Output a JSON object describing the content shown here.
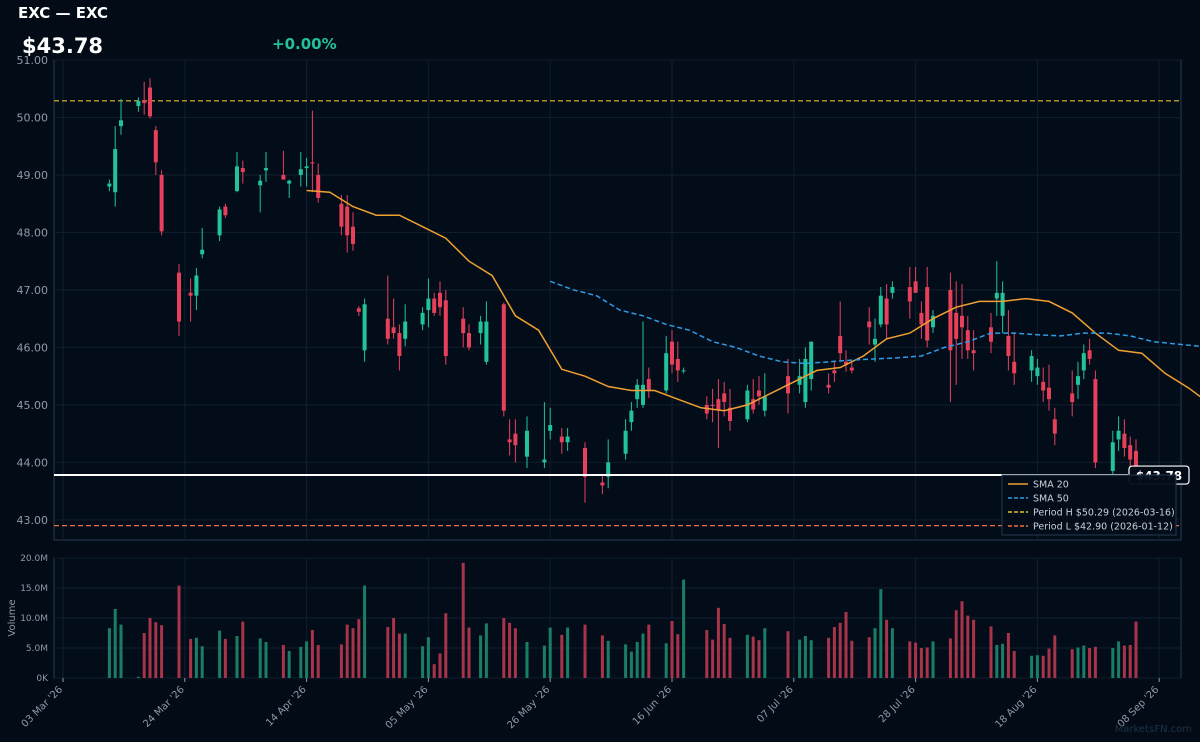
{
  "header": {
    "title": "EXC — EXC",
    "price": "$43.78",
    "change": "+0.00%"
  },
  "watermark": "MarketsFN.com",
  "colors": {
    "background": "#020b16",
    "up": "#22c39a",
    "down": "#e8405a",
    "sma20": "#f0a030",
    "sma50": "#2e9be6",
    "period_high": "#e8c030",
    "period_low": "#e8703a",
    "last_price_line": "#ffffff"
  },
  "chart_data": {
    "type": "candlestick",
    "ylabel": "",
    "volume_ylabel": "Volume",
    "ylim": [
      42.65,
      51.0
    ],
    "volume_ylim": [
      0,
      20000000
    ],
    "y_ticks": [
      "43.00",
      "44.00",
      "45.00",
      "46.00",
      "47.00",
      "48.00",
      "49.00",
      "50.00",
      "51.00"
    ],
    "volume_ticks": [
      "0K",
      "5.0M",
      "10.0M",
      "15.0M",
      "20.0M"
    ],
    "x_ticks": [
      "03 Mar '26",
      "24 Mar '26",
      "14 Apr '26",
      "05 May '26",
      "26 May '26",
      "16 Jun '26",
      "07 Jul '26",
      "28 Jul '26",
      "18 Aug '26",
      "08 Sep '26"
    ],
    "x_start": "2026-03-03",
    "candles": [
      [
        "2026-03-11",
        48.8,
        48.92,
        48.72,
        48.85,
        8.3
      ],
      [
        "2026-03-12",
        48.7,
        49.85,
        48.45,
        49.45,
        11.5
      ],
      [
        "2026-03-13",
        49.85,
        50.32,
        49.7,
        49.95,
        8.9
      ],
      [
        "2026-03-16",
        50.2,
        50.35,
        50.1,
        50.29,
        0.2
      ],
      [
        "2026-03-17",
        50.3,
        50.62,
        50.05,
        50.25,
        7.5
      ],
      [
        "2026-03-18",
        50.52,
        50.68,
        49.98,
        50.02,
        10.0
      ],
      [
        "2026-03-19",
        49.78,
        49.85,
        49.0,
        49.22,
        9.3
      ],
      [
        "2026-03-20",
        49.0,
        49.08,
        47.95,
        48.02,
        8.8
      ],
      [
        "2026-03-23",
        47.3,
        47.45,
        46.2,
        46.45,
        15.4
      ],
      [
        "2026-03-25",
        46.95,
        47.2,
        46.45,
        46.9,
        6.5
      ],
      [
        "2026-03-26",
        46.9,
        47.38,
        46.65,
        47.25,
        6.7
      ],
      [
        "2026-03-27",
        47.62,
        48.08,
        47.55,
        47.7,
        5.3
      ],
      [
        "2026-03-30",
        47.95,
        48.45,
        47.85,
        48.4,
        7.9
      ],
      [
        "2026-03-31",
        48.45,
        48.5,
        48.25,
        48.3,
        6.5
      ],
      [
        "2026-04-02",
        48.72,
        49.4,
        48.7,
        49.15,
        7.0
      ],
      [
        "2026-04-03",
        49.12,
        49.25,
        48.85,
        49.05,
        9.4
      ],
      [
        "2026-04-06",
        48.82,
        49.0,
        48.35,
        48.9,
        6.6
      ],
      [
        "2026-04-07",
        49.08,
        49.4,
        48.88,
        49.12,
        6.0
      ],
      [
        "2026-04-10",
        49.0,
        49.42,
        48.95,
        48.92,
        5.5
      ],
      [
        "2026-04-11",
        48.85,
        48.92,
        48.6,
        48.9,
        4.5
      ],
      [
        "2026-04-13",
        49.0,
        49.4,
        48.8,
        49.1,
        5.2
      ],
      [
        "2026-04-14",
        49.12,
        49.3,
        48.8,
        49.15,
        6.1
      ],
      [
        "2026-04-15",
        49.22,
        50.12,
        48.7,
        49.2,
        8.0
      ],
      [
        "2026-04-16",
        49.0,
        49.2,
        48.52,
        48.6,
        5.5
      ],
      [
        "2026-04-20",
        48.5,
        48.65,
        47.95,
        48.1,
        5.6
      ],
      [
        "2026-04-21",
        48.45,
        48.65,
        47.65,
        47.95,
        8.9
      ],
      [
        "2026-04-22",
        48.1,
        48.35,
        47.68,
        47.8,
        8.3
      ],
      [
        "2026-04-23",
        46.68,
        46.72,
        46.55,
        46.62,
        9.8
      ],
      [
        "2026-04-24",
        45.95,
        46.85,
        45.75,
        46.75,
        15.4
      ],
      [
        "2026-04-28",
        46.5,
        47.25,
        46.05,
        46.15,
        8.5
      ],
      [
        "2026-04-29",
        46.35,
        46.85,
        46.15,
        46.25,
        10.0
      ],
      [
        "2026-04-30",
        46.25,
        46.4,
        45.6,
        45.85,
        7.4
      ],
      [
        "2026-05-01",
        46.15,
        46.75,
        46.02,
        46.45,
        7.4
      ],
      [
        "2026-05-04",
        46.4,
        46.7,
        46.3,
        46.6,
        5.3
      ],
      [
        "2026-05-05",
        46.65,
        47.2,
        46.35,
        46.85,
        6.8
      ],
      [
        "2026-05-06",
        46.85,
        46.95,
        46.55,
        46.6,
        2.3
      ],
      [
        "2026-05-07",
        46.95,
        47.15,
        46.55,
        46.7,
        4.1
      ],
      [
        "2026-05-08",
        46.82,
        47.0,
        45.7,
        45.85,
        10.8
      ],
      [
        "2026-05-11",
        46.5,
        46.7,
        46.0,
        46.25,
        19.2
      ],
      [
        "2026-05-12",
        46.25,
        46.4,
        45.95,
        46.0,
        8.4
      ],
      [
        "2026-05-14",
        46.25,
        46.55,
        46.05,
        46.45,
        7.1
      ],
      [
        "2026-05-15",
        45.75,
        46.8,
        45.7,
        46.45,
        9.1
      ],
      [
        "2026-05-18",
        46.75,
        46.78,
        44.8,
        44.9,
        10.0
      ],
      [
        "2026-05-19",
        44.4,
        44.75,
        44.12,
        44.35,
        9.2
      ],
      [
        "2026-05-20",
        44.5,
        44.75,
        44.0,
        44.3,
        8.3
      ],
      [
        "2026-05-22",
        44.1,
        44.8,
        43.9,
        44.55,
        6.0
      ],
      [
        "2026-05-25",
        44.0,
        45.05,
        43.9,
        44.05,
        5.4
      ],
      [
        "2026-05-26",
        44.55,
        44.95,
        44.4,
        44.65,
        8.4
      ],
      [
        "2026-05-28",
        44.45,
        44.6,
        44.15,
        44.35,
        7.2
      ],
      [
        "2026-05-29",
        44.35,
        44.6,
        44.2,
        44.45,
        8.4
      ],
      [
        "2026-06-01",
        44.25,
        44.35,
        43.3,
        43.75,
        8.9
      ],
      [
        "2026-06-04",
        43.65,
        43.8,
        43.45,
        43.6,
        7.1
      ],
      [
        "2026-06-05",
        43.75,
        44.4,
        43.55,
        44.0,
        6.2
      ],
      [
        "2026-06-08",
        44.15,
        44.75,
        44.05,
        44.55,
        5.6
      ],
      [
        "2026-06-09",
        44.7,
        45.05,
        44.55,
        44.9,
        4.4
      ],
      [
        "2026-06-10",
        45.1,
        45.45,
        44.95,
        45.35,
        6.0
      ],
      [
        "2026-06-11",
        45.0,
        46.45,
        44.95,
        45.35,
        7.4
      ],
      [
        "2026-06-12",
        45.45,
        45.65,
        45.12,
        45.25,
        8.9
      ],
      [
        "2026-06-15",
        45.25,
        46.2,
        45.2,
        45.9,
        5.8
      ],
      [
        "2026-06-16",
        46.1,
        46.3,
        45.55,
        45.7,
        9.5
      ],
      [
        "2026-06-17",
        45.8,
        46.1,
        45.4,
        45.6,
        7.3
      ],
      [
        "2026-06-18",
        45.6,
        45.65,
        45.55,
        45.6,
        16.4
      ],
      [
        "2026-06-22",
        45.0,
        45.15,
        44.75,
        44.85,
        8.0
      ],
      [
        "2026-06-23",
        45.0,
        45.28,
        44.7,
        44.98,
        6.4
      ],
      [
        "2026-06-24",
        45.1,
        45.45,
        44.25,
        44.9,
        11.7
      ],
      [
        "2026-06-25",
        45.2,
        45.4,
        44.8,
        45.05,
        9.0
      ],
      [
        "2026-06-26",
        44.95,
        45.28,
        44.55,
        44.72,
        6.7
      ],
      [
        "2026-06-29",
        44.75,
        45.35,
        44.7,
        45.25,
        7.2
      ],
      [
        "2026-06-30",
        45.1,
        45.45,
        44.85,
        44.92,
        6.9
      ],
      [
        "2026-07-01",
        45.25,
        45.5,
        45.0,
        45.15,
        6.3
      ],
      [
        "2026-07-02",
        44.9,
        45.55,
        44.8,
        45.15,
        8.3
      ],
      [
        "2026-07-06",
        45.5,
        45.8,
        44.85,
        45.2,
        7.8
      ],
      [
        "2026-07-08",
        45.35,
        45.8,
        45.2,
        45.5,
        6.4
      ],
      [
        "2026-07-09",
        45.05,
        46.0,
        44.95,
        45.8,
        7.0
      ],
      [
        "2026-07-10",
        45.45,
        46.1,
        45.25,
        46.1,
        6.3
      ],
      [
        "2026-07-13",
        45.35,
        45.55,
        45.2,
        45.3,
        6.7
      ],
      [
        "2026-07-14",
        45.6,
        45.75,
        45.4,
        45.55,
        8.5
      ],
      [
        "2026-07-15",
        46.2,
        46.8,
        45.75,
        45.9,
        9.2
      ],
      [
        "2026-07-16",
        45.75,
        45.95,
        45.58,
        45.7,
        11.0
      ],
      [
        "2026-07-17",
        45.65,
        45.75,
        45.55,
        45.6,
        6.2
      ],
      [
        "2026-07-20",
        46.45,
        46.7,
        46.05,
        46.35,
        6.8
      ],
      [
        "2026-07-21",
        46.05,
        46.5,
        45.75,
        46.15,
        8.3
      ],
      [
        "2026-07-22",
        46.4,
        47.05,
        46.35,
        46.9,
        14.8
      ],
      [
        "2026-07-23",
        46.85,
        47.1,
        46.15,
        46.4,
        9.7
      ],
      [
        "2026-07-24",
        46.95,
        47.15,
        46.85,
        47.05,
        8.3
      ],
      [
        "2026-07-27",
        47.05,
        47.4,
        46.5,
        46.8,
        6.1
      ],
      [
        "2026-07-28",
        47.15,
        47.4,
        47.0,
        46.95,
        5.9
      ],
      [
        "2026-07-29",
        46.6,
        46.8,
        46.15,
        46.4,
        5.0
      ],
      [
        "2026-07-30",
        47.05,
        47.4,
        46.0,
        46.12,
        5.1
      ],
      [
        "2026-07-31",
        46.35,
        46.65,
        46.25,
        46.55,
        6.1
      ],
      [
        "2026-08-03",
        47.0,
        47.3,
        45.05,
        45.95,
        6.6
      ],
      [
        "2026-08-04",
        46.6,
        47.15,
        45.35,
        46.15,
        11.3
      ],
      [
        "2026-08-05",
        46.55,
        47.1,
        45.8,
        46.35,
        12.8
      ],
      [
        "2026-08-06",
        46.3,
        46.55,
        45.8,
        45.95,
        10.4
      ],
      [
        "2026-08-07",
        45.95,
        46.3,
        45.6,
        45.9,
        9.7
      ],
      [
        "2026-08-10",
        46.35,
        46.6,
        45.9,
        46.1,
        8.6
      ],
      [
        "2026-08-11",
        46.85,
        47.5,
        46.55,
        46.95,
        5.5
      ],
      [
        "2026-08-12",
        46.55,
        47.15,
        46.25,
        46.95,
        5.7
      ],
      [
        "2026-08-13",
        46.2,
        46.65,
        45.6,
        45.85,
        7.5
      ],
      [
        "2026-08-14",
        45.75,
        46.25,
        45.35,
        45.55,
        4.5
      ],
      [
        "2026-08-17",
        45.6,
        45.95,
        45.4,
        45.85,
        3.7
      ],
      [
        "2026-08-18",
        45.5,
        45.8,
        45.35,
        45.65,
        3.8
      ],
      [
        "2026-08-19",
        45.4,
        45.65,
        45.05,
        45.25,
        3.7
      ],
      [
        "2026-08-20",
        45.3,
        45.7,
        44.9,
        45.1,
        4.9
      ],
      [
        "2026-08-21",
        44.75,
        44.95,
        44.3,
        44.5,
        7.1
      ],
      [
        "2026-08-24",
        45.2,
        45.6,
        44.8,
        45.05,
        4.8
      ],
      [
        "2026-08-25",
        45.35,
        45.75,
        45.1,
        45.5,
        5.1
      ],
      [
        "2026-08-26",
        45.6,
        46.05,
        45.45,
        45.9,
        5.4
      ],
      [
        "2026-08-27",
        45.95,
        46.15,
        45.7,
        45.8,
        5.0
      ],
      [
        "2026-08-28",
        45.45,
        45.6,
        43.9,
        44.0,
        5.2
      ],
      [
        "2026-08-31",
        43.85,
        44.55,
        43.75,
        44.35,
        5.0
      ],
      [
        "2026-09-01",
        44.4,
        44.8,
        44.2,
        44.55,
        6.1
      ],
      [
        "2026-09-02",
        44.5,
        44.75,
        44.1,
        44.25,
        5.4
      ],
      [
        "2026-09-03",
        44.3,
        44.45,
        43.85,
        44.05,
        5.5
      ],
      [
        "2026-09-04",
        44.2,
        44.4,
        43.7,
        43.78,
        9.4
      ]
    ],
    "sma20": [
      [
        "2026-04-14",
        48.73
      ],
      [
        "2026-04-18",
        48.7
      ],
      [
        "2026-04-22",
        48.45
      ],
      [
        "2026-04-26",
        48.3
      ],
      [
        "2026-04-30",
        48.3
      ],
      [
        "2026-05-04",
        48.1
      ],
      [
        "2026-05-08",
        47.9
      ],
      [
        "2026-05-12",
        47.5
      ],
      [
        "2026-05-16",
        47.25
      ],
      [
        "2026-05-20",
        46.55
      ],
      [
        "2026-05-24",
        46.3
      ],
      [
        "2026-05-28",
        45.62
      ],
      [
        "2026-06-01",
        45.5
      ],
      [
        "2026-06-05",
        45.32
      ],
      [
        "2026-06-09",
        45.25
      ],
      [
        "2026-06-13",
        45.25
      ],
      [
        "2026-06-17",
        45.1
      ],
      [
        "2026-06-21",
        44.95
      ],
      [
        "2026-06-25",
        44.9
      ],
      [
        "2026-06-29",
        45.0
      ],
      [
        "2026-07-03",
        45.2
      ],
      [
        "2026-07-07",
        45.4
      ],
      [
        "2026-07-11",
        45.6
      ],
      [
        "2026-07-15",
        45.65
      ],
      [
        "2026-07-19",
        45.85
      ],
      [
        "2026-07-23",
        46.15
      ],
      [
        "2026-07-27",
        46.25
      ],
      [
        "2026-07-31",
        46.5
      ],
      [
        "2026-08-04",
        46.7
      ],
      [
        "2026-08-08",
        46.8
      ],
      [
        "2026-08-12",
        46.8
      ],
      [
        "2026-08-16",
        46.85
      ],
      [
        "2026-08-20",
        46.8
      ],
      [
        "2026-08-24",
        46.6
      ],
      [
        "2026-08-28",
        46.25
      ],
      [
        "2026-09-01",
        45.95
      ],
      [
        "2026-09-05",
        45.9
      ],
      [
        "2026-09-09",
        45.55
      ],
      [
        "2026-09-13",
        45.3
      ],
      [
        "2026-09-17",
        45.0
      ],
      [
        "2026-09-21",
        44.9
      ]
    ],
    "sma50": [
      [
        "2026-05-26",
        47.15
      ],
      [
        "2026-05-30",
        47.0
      ],
      [
        "2026-06-03",
        46.9
      ],
      [
        "2026-06-07",
        46.65
      ],
      [
        "2026-06-11",
        46.55
      ],
      [
        "2026-06-15",
        46.4
      ],
      [
        "2026-06-19",
        46.3
      ],
      [
        "2026-06-23",
        46.1
      ],
      [
        "2026-06-27",
        46.0
      ],
      [
        "2026-07-01",
        45.85
      ],
      [
        "2026-07-05",
        45.75
      ],
      [
        "2026-07-09",
        45.72
      ],
      [
        "2026-07-13",
        45.75
      ],
      [
        "2026-07-17",
        45.78
      ],
      [
        "2026-07-21",
        45.8
      ],
      [
        "2026-07-25",
        45.82
      ],
      [
        "2026-07-29",
        45.85
      ],
      [
        "2026-08-02",
        46.0
      ],
      [
        "2026-08-06",
        46.1
      ],
      [
        "2026-08-10",
        46.25
      ],
      [
        "2026-08-14",
        46.25
      ],
      [
        "2026-08-18",
        46.22
      ],
      [
        "2026-08-22",
        46.2
      ],
      [
        "2026-08-26",
        46.25
      ],
      [
        "2026-08-30",
        46.25
      ],
      [
        "2026-09-03",
        46.2
      ],
      [
        "2026-09-07",
        46.1
      ],
      [
        "2026-09-12",
        46.05
      ],
      [
        "2026-09-17",
        46.0
      ]
    ],
    "period_high": 50.29,
    "period_low": 42.9,
    "last_price": 43.78,
    "last_price_label": "$43.78",
    "legend_position": "bottom-right",
    "legend": [
      {
        "label": "SMA 20",
        "style": "solid",
        "color": "#f0a030"
      },
      {
        "label": "SMA 50",
        "style": "dashed",
        "color": "#2e9be6"
      },
      {
        "label": "Period H $50.29 (2026-03-16)",
        "style": "dashed",
        "color": "#e8c030"
      },
      {
        "label": "Period L $42.90 (2026-01-12)",
        "style": "dashed",
        "color": "#e8703a"
      }
    ]
  }
}
